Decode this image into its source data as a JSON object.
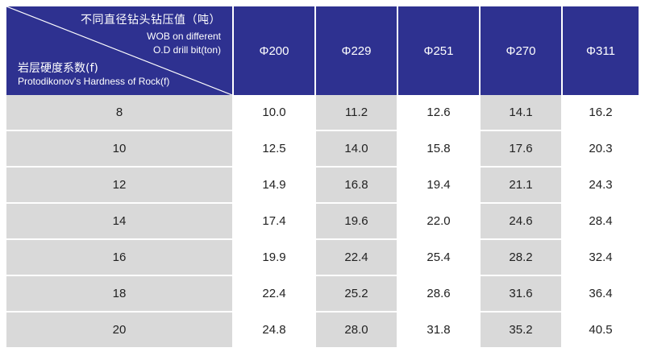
{
  "header": {
    "corner": {
      "col_label_zh": "不同直径钻头钻压值（吨）",
      "col_label_en_1": "WOB on different",
      "col_label_en_2": "O.D drill bit(ton)",
      "row_label_zh": "岩层硬度系数(f)",
      "row_label_en": "Protodikonov's Hardness of Rock(f)"
    },
    "columns": [
      "Φ200",
      "Φ229",
      "Φ251",
      "Φ270",
      "Φ311"
    ]
  },
  "rows": [
    {
      "f": "8",
      "values": [
        "10.0",
        "11.2",
        "12.6",
        "14.1",
        "16.2"
      ]
    },
    {
      "f": "10",
      "values": [
        "12.5",
        "14.0",
        "15.8",
        "17.6",
        "20.3"
      ]
    },
    {
      "f": "12",
      "values": [
        "14.9",
        "16.8",
        "19.4",
        "21.1",
        "24.3"
      ]
    },
    {
      "f": "14",
      "values": [
        "17.4",
        "19.6",
        "22.0",
        "24.6",
        "28.4"
      ]
    },
    {
      "f": "16",
      "values": [
        "19.9",
        "22.4",
        "25.4",
        "28.2",
        "32.4"
      ]
    },
    {
      "f": "18",
      "values": [
        "22.4",
        "25.2",
        "28.6",
        "31.6",
        "36.4"
      ]
    },
    {
      "f": "20",
      "values": [
        "24.8",
        "28.0",
        "31.8",
        "35.2",
        "40.5"
      ]
    }
  ],
  "colors": {
    "header_bg": "#2e3190",
    "shade": "#d9d9d9",
    "plain": "#ffffff"
  }
}
